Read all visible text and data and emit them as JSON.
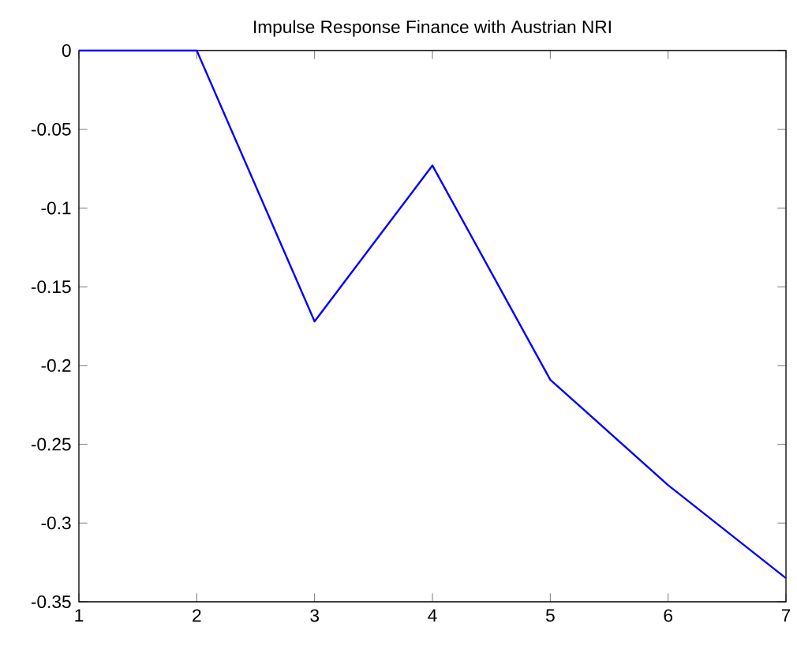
{
  "chart_data": {
    "type": "line",
    "title": "Impulse Response Finance with Austrian NRI",
    "x": [
      1,
      2,
      3,
      4,
      5,
      6,
      7
    ],
    "series": [
      {
        "color": "#0000ff",
        "values": [
          0,
          0,
          -0.172,
          -0.073,
          -0.209,
          -0.276,
          -0.335
        ]
      }
    ],
    "xlim": [
      1,
      7
    ],
    "xticks": [
      1,
      2,
      3,
      4,
      5,
      6,
      7
    ],
    "ylim": [
      -0.35,
      0
    ],
    "yticks": [
      -0.35,
      -0.3,
      -0.25,
      -0.2,
      -0.15,
      -0.1,
      -0.05,
      0
    ],
    "grid": false,
    "marker": "none",
    "line_style": "solid"
  }
}
